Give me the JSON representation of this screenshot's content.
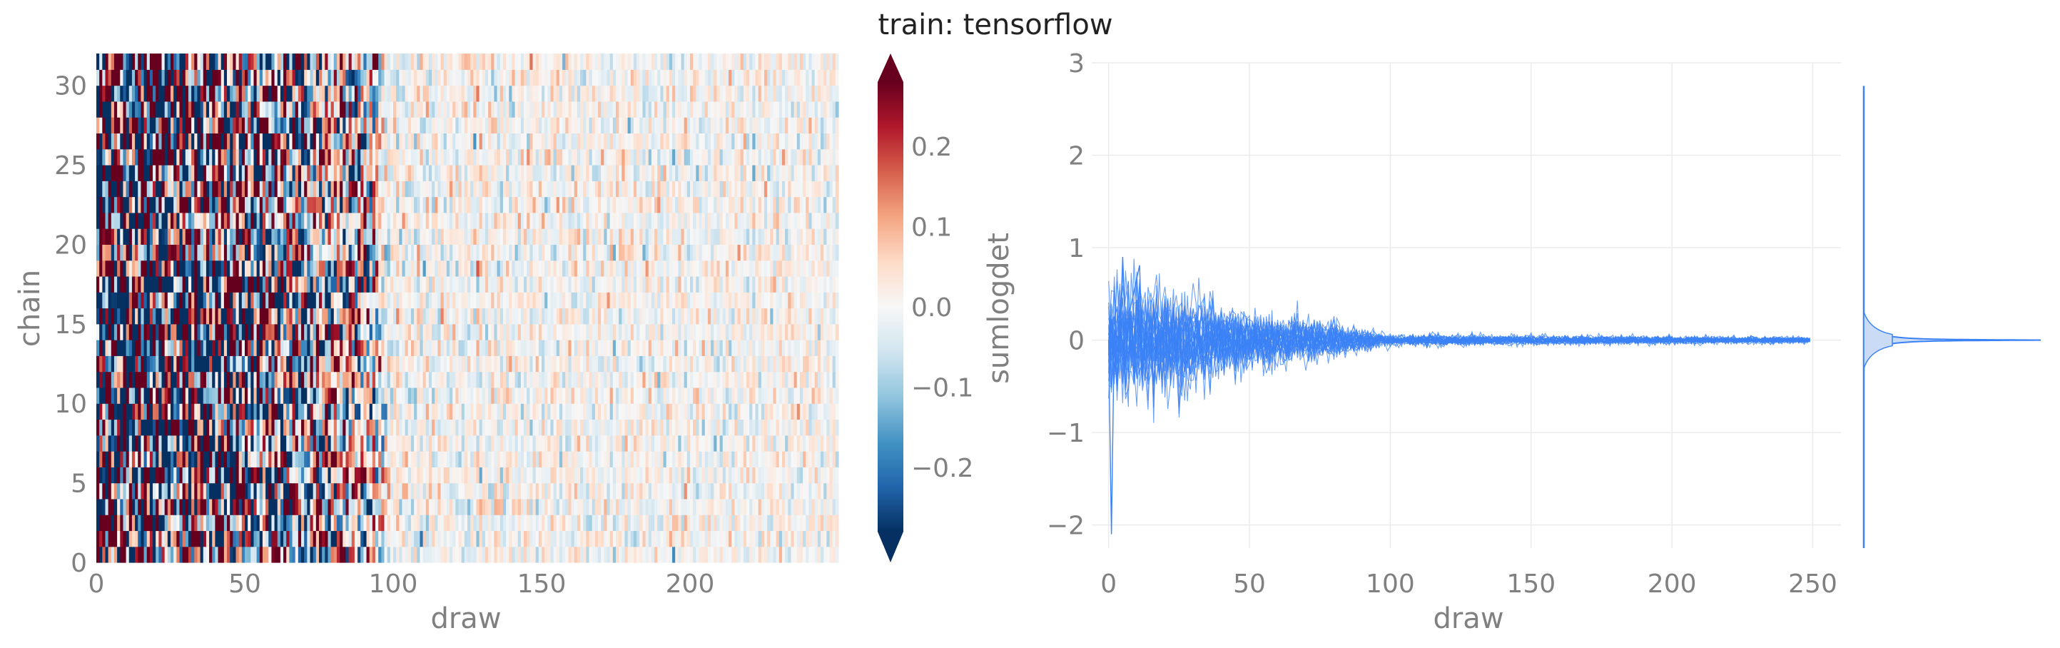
{
  "title": "train: tensorflow",
  "colors": {
    "trace": "#3b82f6",
    "kde_fill": "#c9dbf5",
    "cmap_low": "#053061",
    "cmap_mid": "#f7f7f7",
    "cmap_high": "#67001f"
  },
  "chart_data": [
    {
      "type": "heatmap",
      "xlabel": "draw",
      "ylabel": "chain",
      "x_range": [
        0,
        250
      ],
      "y_range": [
        0,
        32
      ],
      "xticks": [
        0,
        50,
        100,
        150,
        200
      ],
      "yticks": [
        0,
        5,
        10,
        15,
        20,
        25,
        30
      ],
      "n_chains": 32,
      "n_draws": 250,
      "envelope": [
        {
          "draw": 0,
          "amplitude": 0.5
        },
        {
          "draw": 50,
          "amplitude": 0.33
        },
        {
          "draw": 90,
          "amplitude": 0.17
        },
        {
          "draw": 100,
          "amplitude": 0.05
        },
        {
          "draw": 250,
          "amplitude": 0.04
        }
      ],
      "colorbar": {
        "label": "sumlogdet",
        "colormap": "RdBu_r",
        "range": [
          -0.28,
          0.28
        ],
        "ticks": [
          -0.2,
          -0.1,
          0.0,
          0.1,
          0.2
        ],
        "extend": "both"
      }
    },
    {
      "type": "line",
      "xlabel": "draw",
      "ylabel": "sumlogdet",
      "xlim": [
        -6,
        260
      ],
      "ylim": [
        -2.25,
        3
      ],
      "xticks": [
        0,
        50,
        100,
        150,
        200,
        250
      ],
      "yticks": [
        -2,
        -1,
        0,
        1,
        2,
        3
      ],
      "n_series": 32,
      "grid": true,
      "envelope": [
        {
          "draw": 0,
          "amplitude": 0.55
        },
        {
          "draw": 10,
          "amplitude": 0.6
        },
        {
          "draw": 50,
          "amplitude": 0.3
        },
        {
          "draw": 80,
          "amplitude": 0.17
        },
        {
          "draw": 100,
          "amplitude": 0.06
        },
        {
          "draw": 250,
          "amplitude": 0.03
        }
      ],
      "extremes": {
        "min": -2.1,
        "max": 0.9
      },
      "marginal": {
        "type": "kde",
        "orientation": "horizontal",
        "range": [
          -2.25,
          2.75
        ],
        "peak": 0.0
      }
    }
  ]
}
